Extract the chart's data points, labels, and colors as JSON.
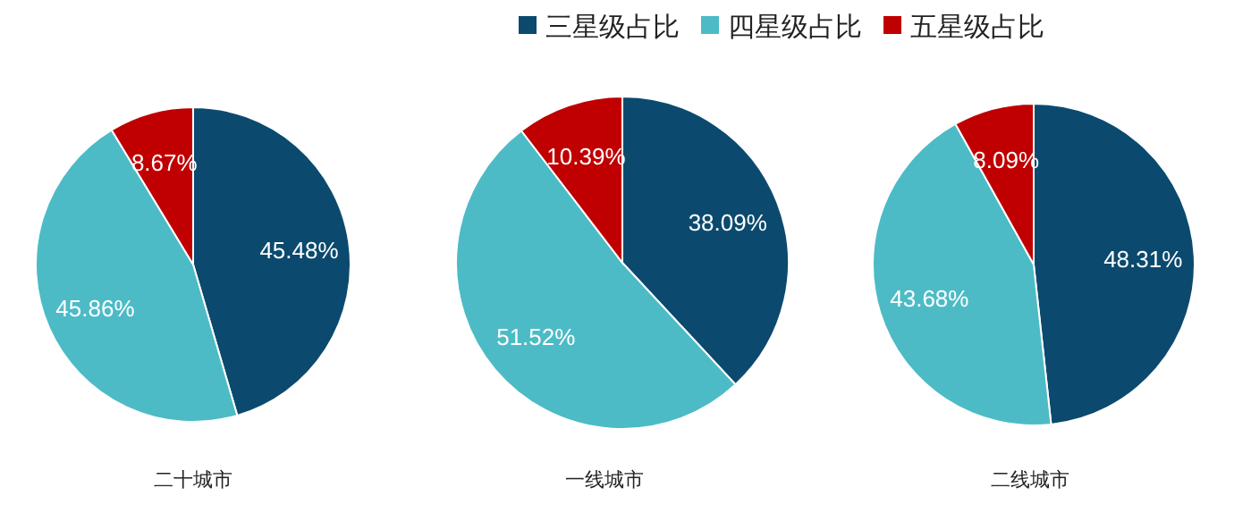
{
  "chart_data": [
    {
      "type": "pie",
      "title": "二十城市",
      "categories": [
        "三星级占比",
        "四星级占比",
        "五星级占比"
      ],
      "values": [
        45.48,
        45.86,
        8.67
      ],
      "value_labels": [
        "45.48%",
        "45.86%",
        "8.67%"
      ],
      "colors": [
        "#0b4a6e",
        "#4dbbc6",
        "#c00000"
      ],
      "legend": "top"
    },
    {
      "type": "pie",
      "title": "一线城市",
      "categories": [
        null,
        null,
        null
      ],
      "values": [
        38.09,
        51.52,
        10.39
      ],
      "value_labels": [
        "38.09%",
        "51.52%",
        "10.39%"
      ],
      "colors": [
        "#0b4a6e",
        "#4dbbc6",
        "#c00000"
      ]
    },
    {
      "type": "pie",
      "title": "二线城市",
      "categories": [
        null,
        null,
        null
      ],
      "values": [
        48.31,
        43.68,
        8.09
      ],
      "value_labels": [
        "48.31%",
        "43.68%",
        "8.09%"
      ],
      "colors": [
        "#0b4a6e",
        "#4dbbc6",
        "#c00000"
      ]
    }
  ]
}
